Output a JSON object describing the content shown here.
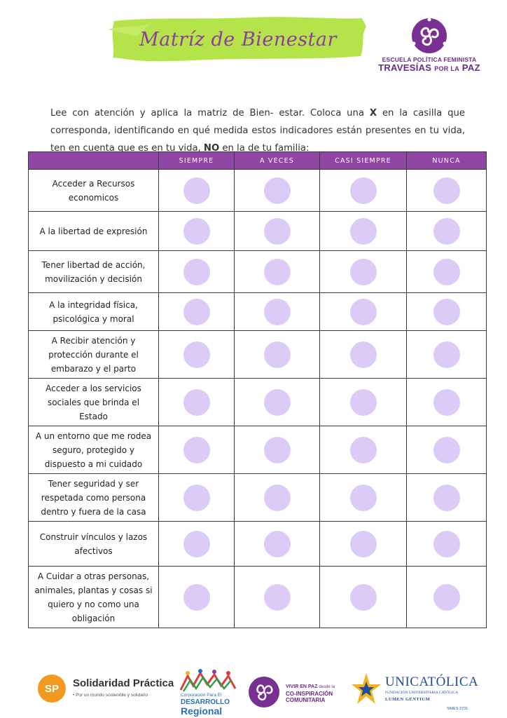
{
  "header": {
    "title": "Matríz de Bienestar",
    "banner_color": "#b5e34a",
    "title_color": "#8e3c9e"
  },
  "logo_top": {
    "line1": "ESCUELA POLÍTICA FEMINISTA",
    "line2_main": "TRAVESÍAS",
    "line2_small": "POR LA",
    "line2_end": "PAZ",
    "icon": "triskelion-icon"
  },
  "intro": {
    "part1": "Lee con atención y aplica la matriz de Bien- estar. Coloca una ",
    "mark": "X",
    "part2": " en la casilla que corresponda, identificando en qué medida estos indicadores están presentes en tu vida, ten en cuenta que es en tu vida, ",
    "emphasis": "NO",
    "part3": " en la de tu familia:"
  },
  "table": {
    "header_color": "#8f45a4",
    "dot_color": "#dccbf7",
    "columns": [
      "SIEMPRE",
      "A VECES",
      "CASI SIEMPRE",
      "NUNCA"
    ],
    "rows": [
      "Acceder a Recursos economicos",
      "A la libertad de expresión",
      "Tener libertad de acción, movilización y decisión",
      "A la integridad física, psicológica y moral",
      "A Recibir atención y protección durante el embarazo y el parto",
      "Acceder a los servicios sociales que brinda el Estado",
      "A un entorno que me rodea seguro, protegido y dispuesto a mi cuidado",
      "Tener seguridad y ser respetada como persona dentro y fuera de la casa",
      "Construir vínculos y lazos afectivos",
      "A Cuidar a otras personas, animales, plantas y cosas si quiero y no como una obligación"
    ]
  },
  "footer": {
    "solidaridad": {
      "badge": "SP",
      "name": "Solidaridad Práctica",
      "tagline": "• Por un mundo sostenible y solidario"
    },
    "corporacion": {
      "line1": "Corporación Para El",
      "line2": "DESARROLLO",
      "line3": "Regional"
    },
    "vivir": {
      "line1": "VIVIR EN PAZ",
      "line1_small": "desde la",
      "line2": "CO-INSPIRACIÓN",
      "line3": "COMUNITARIA"
    },
    "unicatolica": {
      "line1": "UNICATÓLICA",
      "line2": "FUNDACIÓN UNIVERSITARIA CATÓLICA",
      "line3": "LUMEN GENTIUM",
      "line4": "SNIES 2731"
    }
  }
}
